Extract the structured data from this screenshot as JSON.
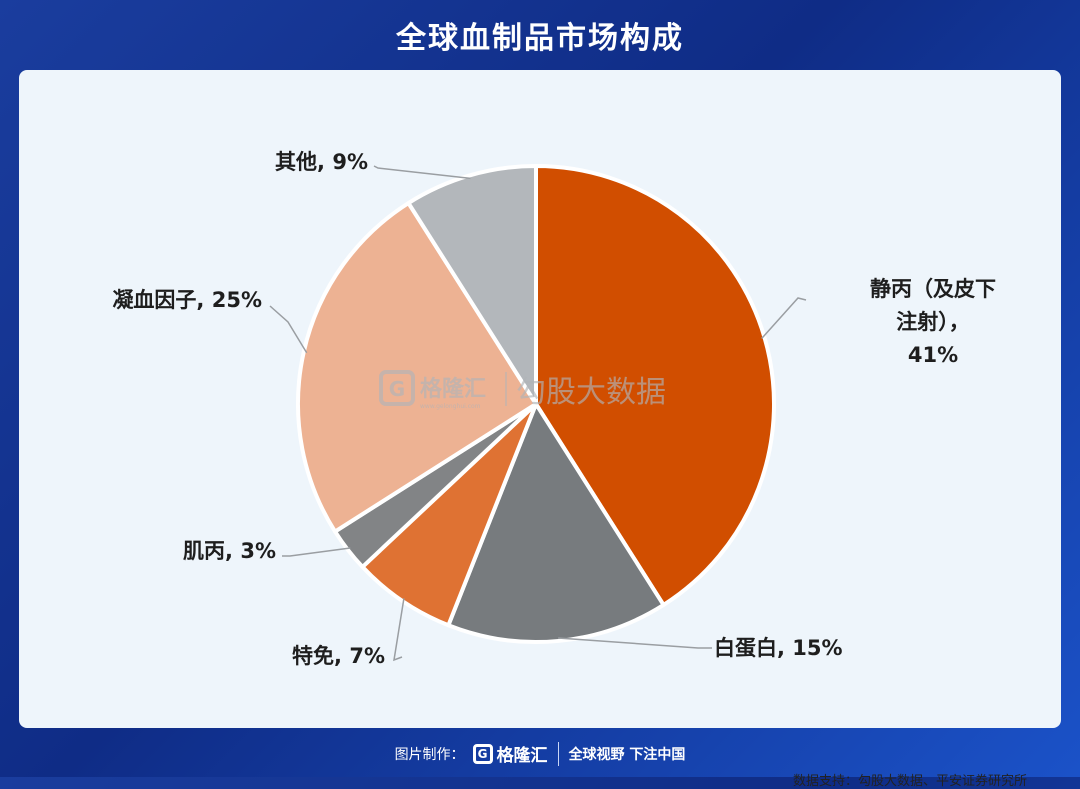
{
  "header": {
    "title": "全球血制品市场构成"
  },
  "chart_data": {
    "type": "pie",
    "title": "",
    "slices": [
      {
        "name": "静丙（及皮下注射）",
        "value": 41,
        "pct_label": "41%",
        "color": "#d14e00",
        "label_lines": [
          "静丙（及皮下",
          "注射），",
          "41%"
        ]
      },
      {
        "name": "白蛋白",
        "value": 15,
        "pct_label": "15%",
        "color": "#777b7e",
        "label_lines": [
          "白蛋白, 15%"
        ]
      },
      {
        "name": "特免",
        "value": 7,
        "pct_label": "7%",
        "color": "#df7233",
        "label_lines": [
          "特免, 7%"
        ]
      },
      {
        "name": "肌丙",
        "value": 3,
        "pct_label": "3%",
        "color": "#828486",
        "label_lines": [
          "肌丙, 3%"
        ]
      },
      {
        "name": "凝血因子",
        "value": 25,
        "pct_label": "25%",
        "color": "#edb293",
        "label_lines": [
          "凝血因子, 25%"
        ]
      },
      {
        "name": "其他",
        "value": 9,
        "pct_label": "9%",
        "color": "#b3b7bb",
        "label_lines": [
          "其他, 9%"
        ]
      }
    ]
  },
  "watermark": {
    "brand": "格隆汇",
    "brand_url": "www.gelonghui.com",
    "text": "勾股大数据",
    "logo_letter": "G"
  },
  "source": {
    "text": "数据支持：勾股大数据、平安证券研究所"
  },
  "footer": {
    "made_by": "图片制作：",
    "brand": "格隆汇",
    "logo_letter": "G",
    "slogan": "全球视野 下注中国"
  },
  "colors": {
    "background": "#163a9a",
    "card": "#eef5fb"
  }
}
